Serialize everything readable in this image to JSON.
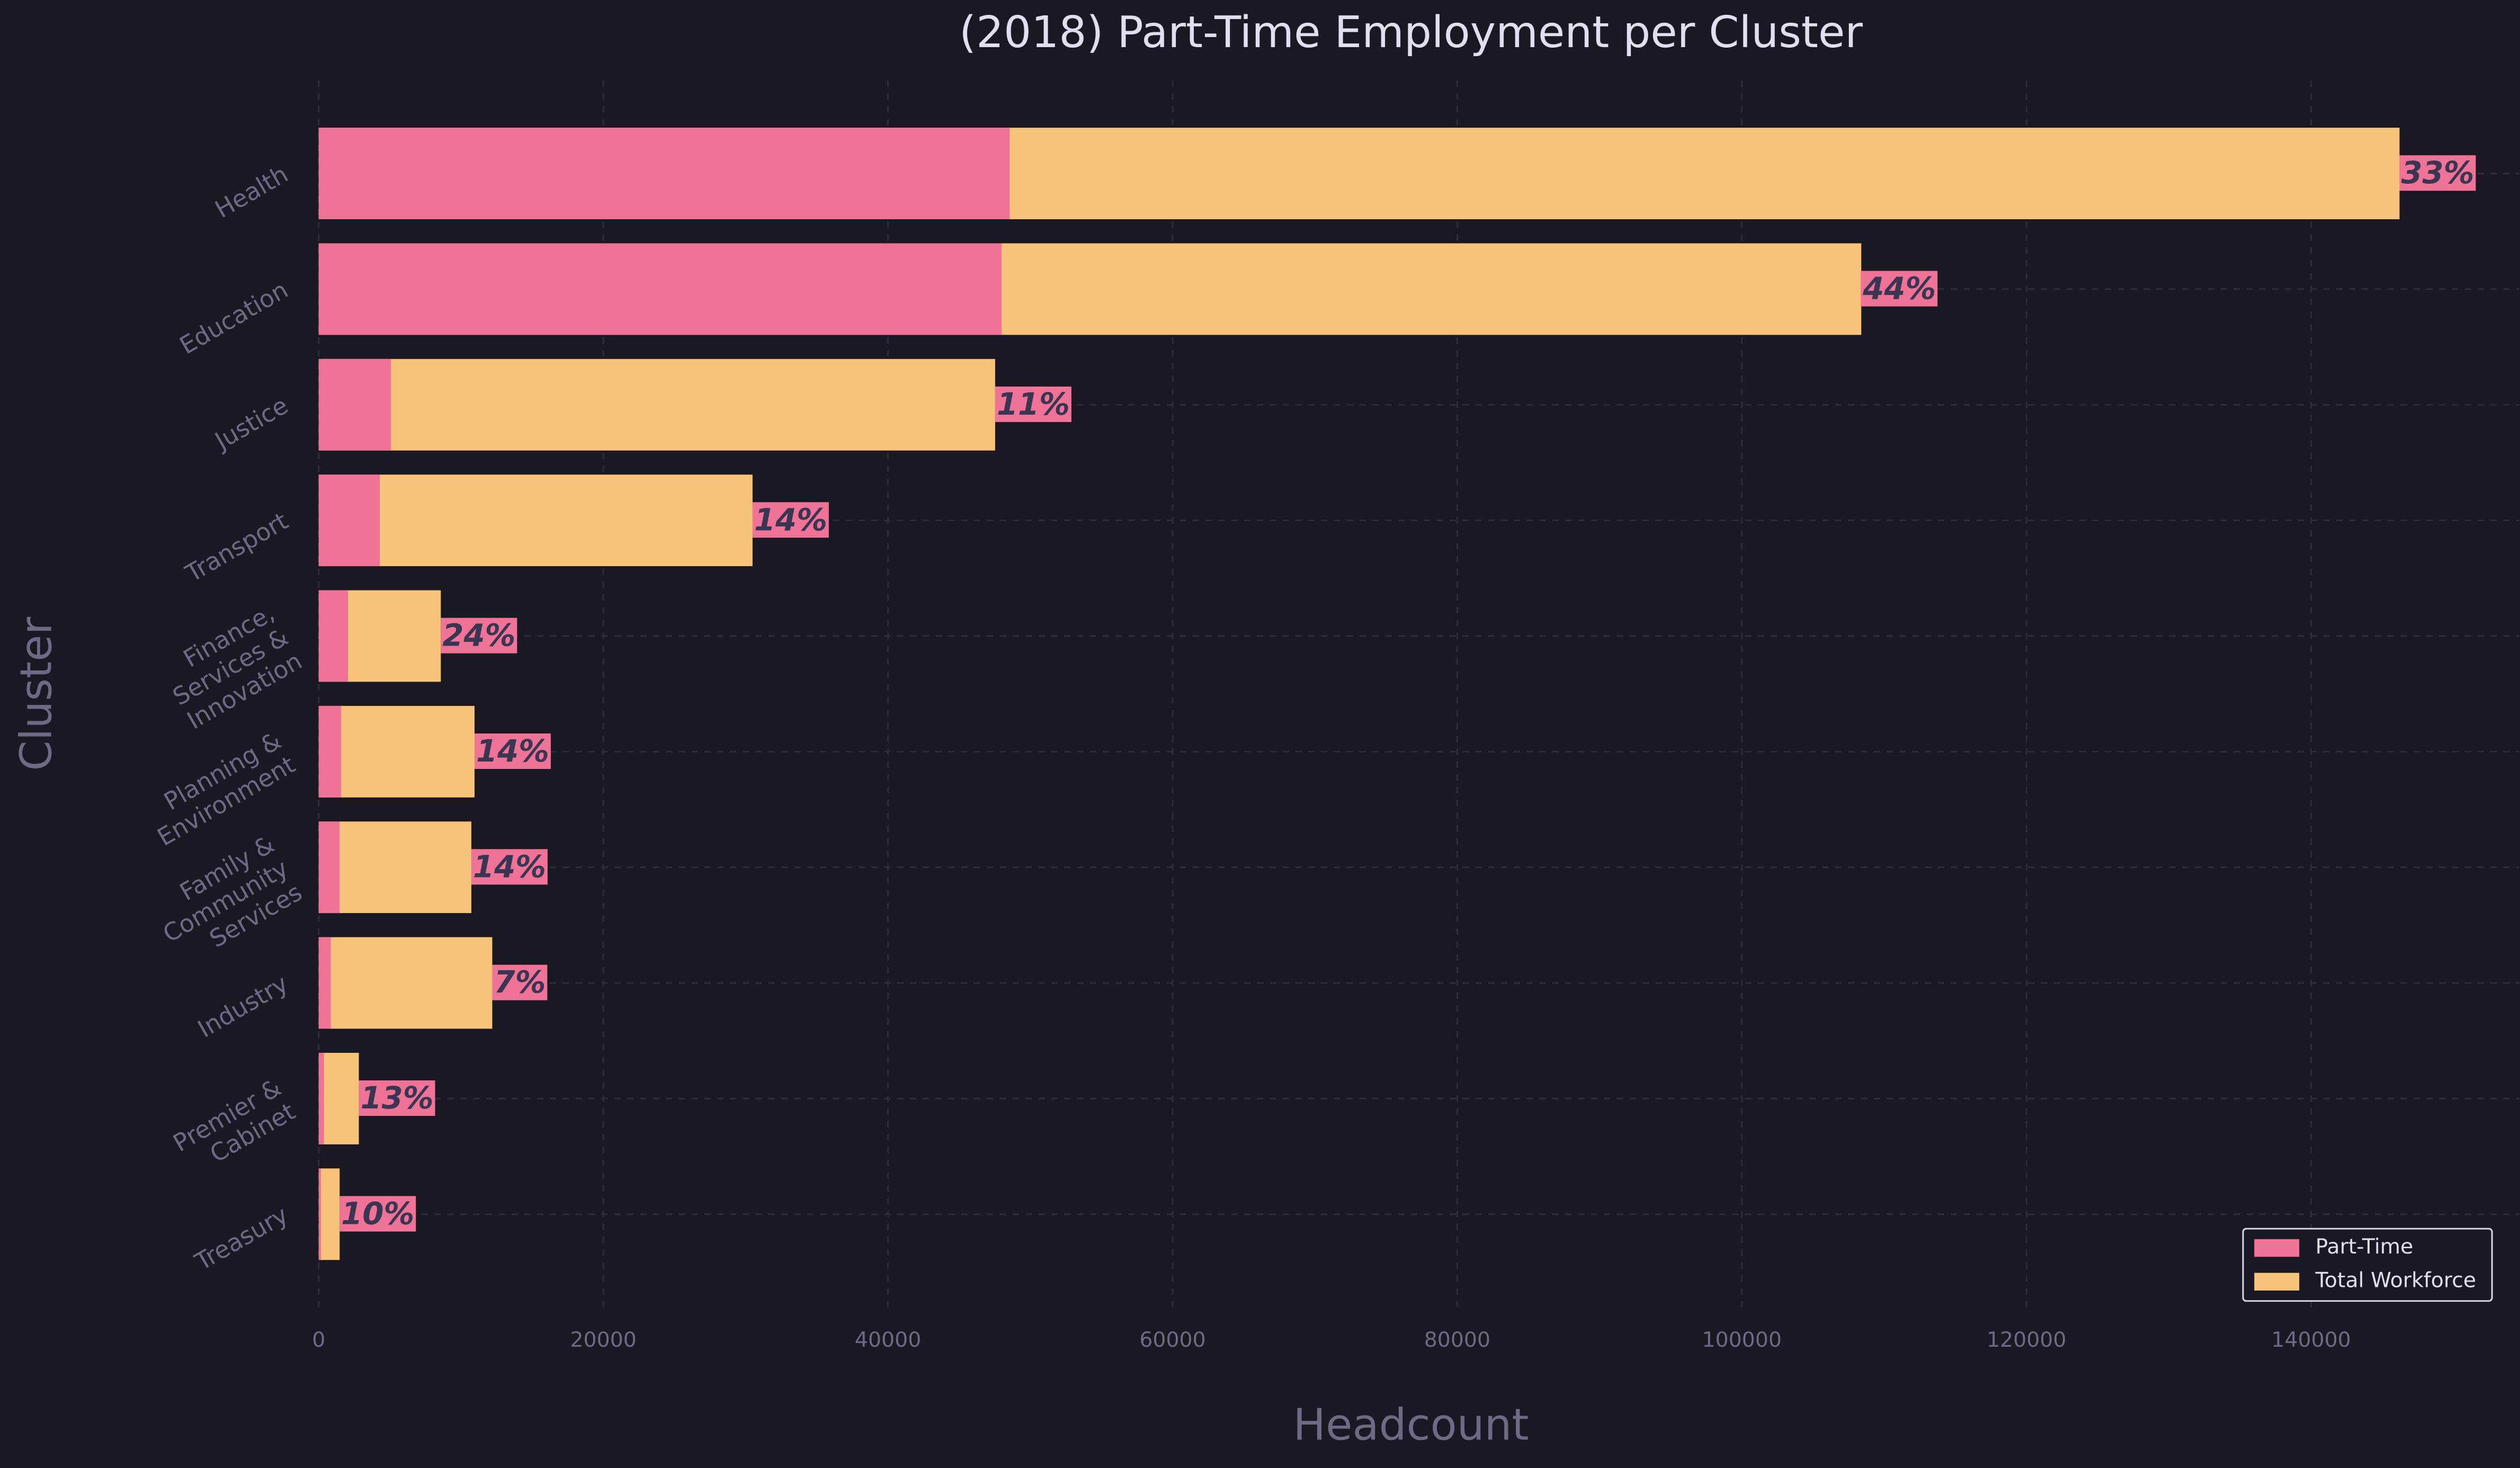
{
  "chart_data": {
    "type": "bar",
    "orientation": "horizontal",
    "overlap": true,
    "title": "(2018) Part-Time Employment per Cluster",
    "x_label": "Headcount",
    "y_label": "Cluster",
    "categories": [
      "Health",
      "Education",
      "Justice",
      "Transport",
      "Finance,\nServices &\nInnovation",
      "Planning &\nEnvironment",
      "Family &\nCommunity\nServices",
      "Industry",
      "Premier &\nCabinet",
      "Treasury"
    ],
    "series": [
      {
        "name": "Part-Time",
        "color": "#ee7396",
        "values": [
          48550,
          47985,
          5080,
          4290,
          2060,
          1580,
          1470,
          850,
          370,
          150
        ]
      },
      {
        "name": "Total Workforce",
        "color": "#f7c27a",
        "values": [
          146210,
          108390,
          47530,
          30485,
          8580,
          10950,
          10725,
          12195,
          2820,
          1470
        ]
      }
    ],
    "share_labels": [
      "33%",
      "44%",
      "11%",
      "14%",
      "24%",
      "14%",
      "14%",
      "7%",
      "13%",
      "10%"
    ],
    "xlim": [
      0,
      153500
    ],
    "xticks": [
      0,
      20000,
      40000,
      60000,
      80000,
      100000,
      120000,
      140000
    ],
    "grid": true,
    "legend": "lower right"
  }
}
